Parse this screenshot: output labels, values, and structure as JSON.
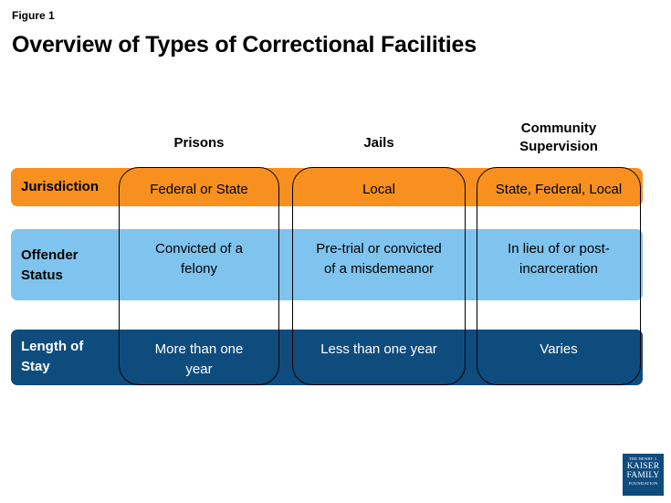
{
  "figure_label": "Figure 1",
  "title": "Overview of Types of Correctional Facilities",
  "columns": [
    {
      "header": "Prisons"
    },
    {
      "header": "Jails"
    },
    {
      "header": "Community\nSupervision"
    }
  ],
  "rows": [
    {
      "label": "Jurisdiction",
      "color": "#f7901e",
      "cells": [
        "Federal or State",
        "Local",
        "State, Federal, Local"
      ]
    },
    {
      "label": "Offender\nStatus",
      "color": "#7fc4ef",
      "cells": [
        "Convicted of a\nfelony",
        "Pre-trial or convicted\nof a misdemeanor",
        "In lieu of or post-\nincarceration"
      ]
    },
    {
      "label": "Length of\nStay",
      "color": "#0e4c7e",
      "cells": [
        "More than one\nyear",
        "Less than one year",
        "Varies"
      ]
    }
  ],
  "logo": {
    "line1": "THE HENRY J.",
    "line2": "KAISER",
    "line3": "FAMILY",
    "line4": "FOUNDATION",
    "color": "#0e4c7e"
  }
}
